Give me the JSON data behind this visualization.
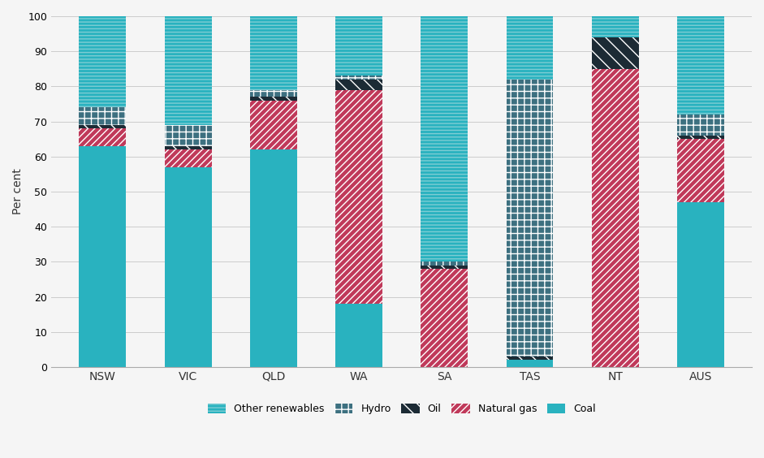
{
  "categories": [
    "NSW",
    "VIC",
    "QLD",
    "WA",
    "SA",
    "TAS",
    "NT",
    "AUS"
  ],
  "coal": [
    63,
    57,
    62,
    18,
    0,
    2,
    0,
    47
  ],
  "natural_gas": [
    5,
    5,
    14,
    61,
    28,
    0,
    85,
    18
  ],
  "oil": [
    1,
    1,
    1,
    3,
    1,
    1,
    9,
    1
  ],
  "hydro": [
    5,
    6,
    2,
    1,
    1,
    79,
    0,
    6
  ],
  "other_renewables": [
    26,
    31,
    21,
    17,
    70,
    18,
    6,
    28
  ],
  "coal_color": "#29b2bf",
  "natural_gas_color": "#c0395a",
  "oil_color": "#1c2b35",
  "hydro_color": "#3d7080",
  "other_renewables_color": "#29b2bf",
  "background_color": "#f5f5f5",
  "ylabel": "Per cent",
  "ylim": [
    0,
    100
  ],
  "bar_width": 0.55
}
